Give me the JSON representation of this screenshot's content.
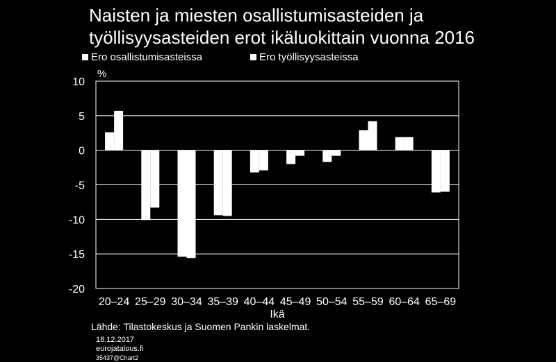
{
  "title_line1": "Naisten ja miesten osallistumisasteiden ja",
  "title_line2": "työllisyysasteiden  erot ikäluokittain vuonna 2016",
  "unit": "%",
  "source": "Lähde: Tilastokeskus ja Suomen Pankin laskelmat.",
  "footer": {
    "date": "18.12.2017",
    "site": "eurojatalous.fi",
    "code": "35437@Chart2"
  },
  "colors": {
    "background": "#000000",
    "bars": "#ffffff",
    "grid": "#ffffff"
  },
  "chart_data": {
    "type": "bar",
    "title": "Naisten ja miesten osallistumisasteiden ja työllisyysasteiden  erot ikäluokittain vuonna 2016",
    "xlabel": "Ikä",
    "ylabel": "%",
    "ylim": [
      -20,
      10
    ],
    "yticks": [
      10,
      5,
      0,
      -5,
      -10,
      -15,
      -20
    ],
    "grid": true,
    "legend_position": "top",
    "categories": [
      "20–24",
      "25–29",
      "30–34",
      "35–39",
      "40–44",
      "45–49",
      "50–54",
      "55–59",
      "60–64",
      "65–69"
    ],
    "series": [
      {
        "name": "Ero osallistumisasteissa",
        "values": [
          2.6,
          -10.1,
          -15.4,
          -9.4,
          -3.2,
          -2.0,
          -1.7,
          2.9,
          1.9,
          -6.1
        ]
      },
      {
        "name": "Ero työllisyysasteissa",
        "values": [
          5.7,
          -8.3,
          -15.6,
          -9.5,
          -2.9,
          -0.8,
          -0.8,
          4.2,
          1.9,
          -6.0
        ]
      }
    ]
  }
}
